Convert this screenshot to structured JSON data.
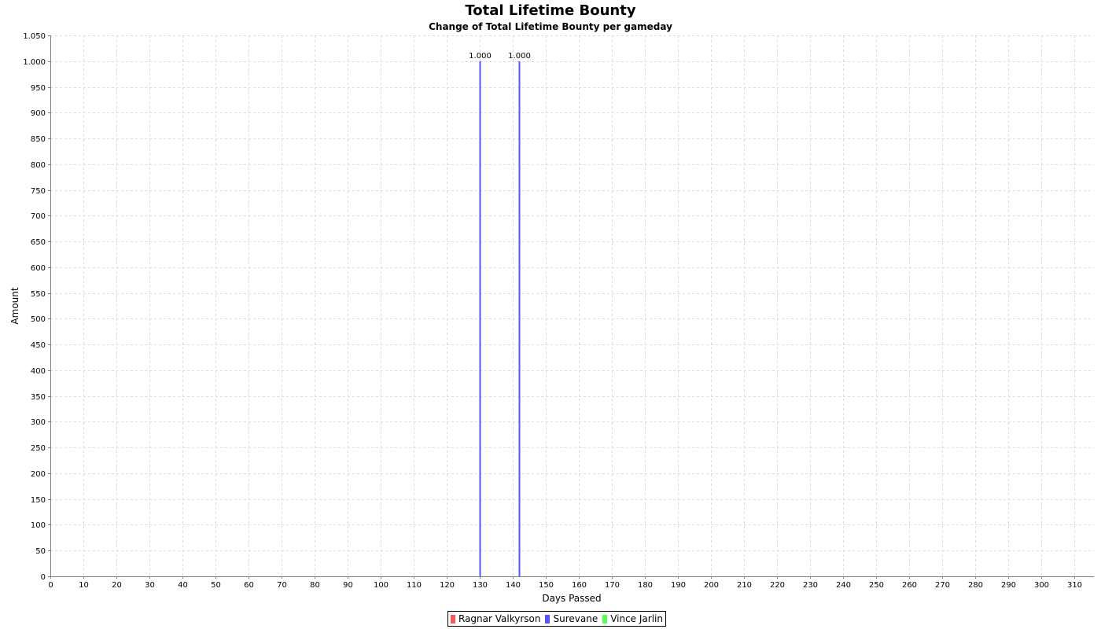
{
  "chart_data": {
    "type": "bar",
    "title": "Total Lifetime Bounty",
    "subtitle": "Change of Total Lifetime Bounty per gameday",
    "xlabel": "Days Passed",
    "ylabel": "Amount",
    "xlim": [
      0,
      316
    ],
    "ylim": [
      0,
      1050
    ],
    "x_ticks": [
      0,
      10,
      20,
      30,
      40,
      50,
      60,
      70,
      80,
      90,
      100,
      110,
      120,
      130,
      140,
      150,
      160,
      170,
      180,
      190,
      200,
      210,
      220,
      230,
      240,
      250,
      260,
      270,
      280,
      290,
      300,
      310
    ],
    "y_ticks": [
      0,
      50,
      100,
      150,
      200,
      250,
      300,
      350,
      400,
      450,
      500,
      550,
      600,
      650,
      700,
      750,
      800,
      850,
      900,
      950,
      1000,
      1050
    ],
    "y_tick_labels": [
      "0",
      "50",
      "100",
      "150",
      "200",
      "250",
      "300",
      "350",
      "400",
      "450",
      "500",
      "550",
      "600",
      "650",
      "700",
      "750",
      "800",
      "850",
      "900",
      "950",
      "1.000",
      "1.050"
    ],
    "grid": true,
    "legend_position": "bottom",
    "series": [
      {
        "name": "Ragnar Valkyrson",
        "color": "#ff5555",
        "points": []
      },
      {
        "name": "Surevane",
        "color": "#5555ff",
        "points": [
          {
            "x": 130,
            "y": 1000,
            "label": "1.000"
          },
          {
            "x": 142,
            "y": 1000,
            "label": "1.000"
          }
        ]
      },
      {
        "name": "Vince Jarlin",
        "color": "#55ff55",
        "points": []
      }
    ]
  }
}
